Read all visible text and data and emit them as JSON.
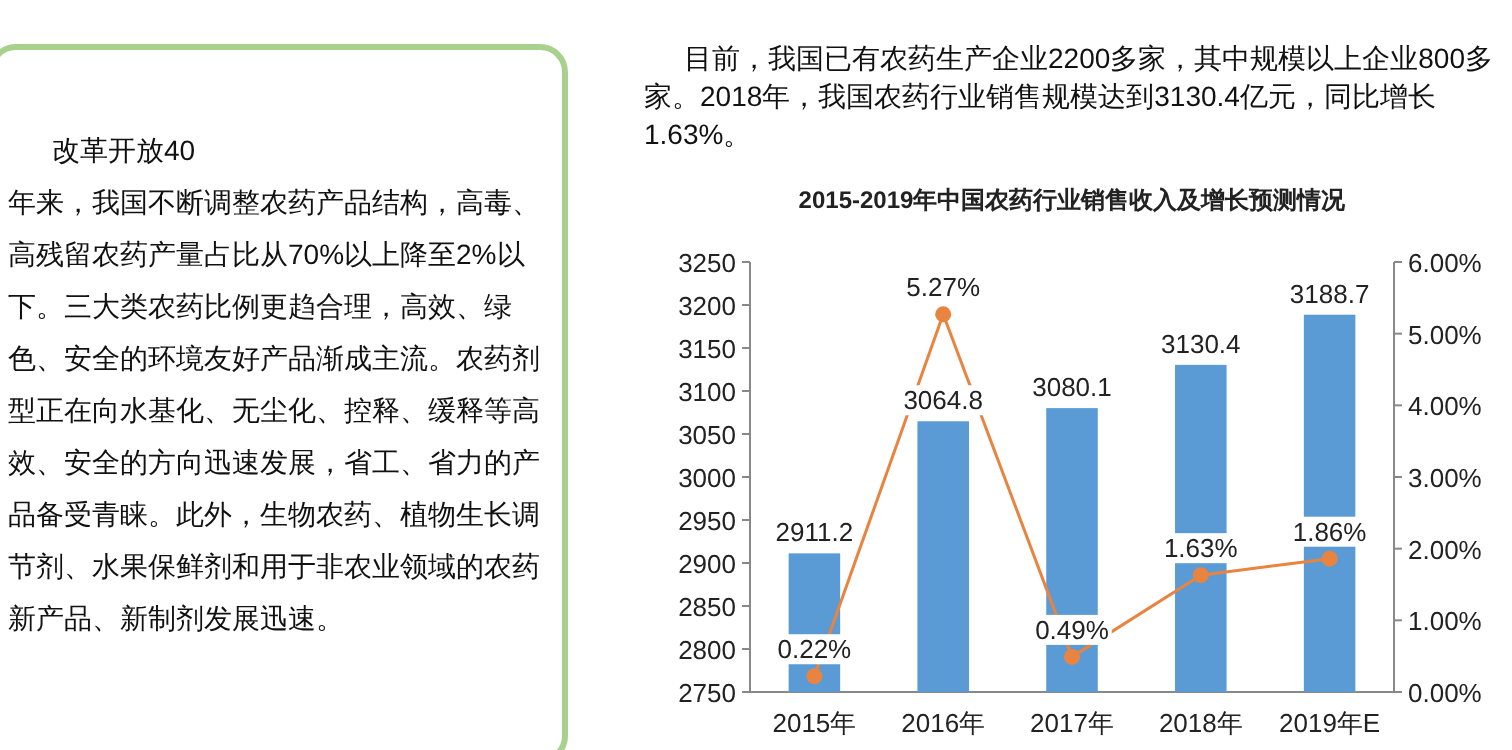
{
  "chart_data": {
    "type": "bar",
    "title": "2015-2019年中国农药行业销售收入及增长预测情况",
    "categories": [
      "2015年",
      "2016年",
      "2017年",
      "2018年",
      "2019年E"
    ],
    "series": [
      {
        "color": "#5b9bd5",
        "values": [
          2911.2,
          3064.8,
          3080.1,
          3130.4,
          3188.7
        ],
        "value_labels": [
          "2911.2",
          "3064.8",
          "3080.1",
          "3130.4",
          "3188.7"
        ]
      },
      {
        "type": "line",
        "axis": "y2",
        "color": "#e8843f",
        "marker": "circle",
        "values": [
          0.22,
          5.27,
          0.49,
          1.63,
          1.86
        ],
        "value_labels": [
          "0.22%",
          "5.27%",
          "0.49%",
          "1.63%",
          "1.86%"
        ]
      }
    ],
    "ylim": [
      2750,
      3250
    ],
    "yticks": [
      2750,
      2800,
      2850,
      2900,
      2950,
      3000,
      3050,
      3100,
      3150,
      3200,
      3250
    ],
    "y2lim": [
      0,
      6
    ],
    "y2ticks": [
      {
        "value": 0,
        "label": "0.00%"
      },
      {
        "value": 1,
        "label": "1.00%"
      },
      {
        "value": 2,
        "label": "2.00%"
      },
      {
        "value": 3,
        "label": "3.00%"
      },
      {
        "value": 4,
        "label": "4.00%"
      },
      {
        "value": 5,
        "label": "5.00%"
      },
      {
        "value": 6,
        "label": "6.00%"
      }
    ],
    "grid": false,
    "annotations": [
      "目前，我国已有农药生产企业2200多家，其中规模以上企业800多家。2018年，我国农药行业销售规模达到3130.4亿元，同比增长1.63%。",
      "改革开放40",
      "年来，我国不断调整农药产品结构，高毒、高残留农药产量占比从70%以上降至2%以下。三大类农药比例更趋合理，高效、绿色、安全的环境友好产品渐成主流。农药剂型正在向水基化、无尘化、控释、缓释等高效、安全的方向迅速发展，省工、省力的产品备受青睐。此外，生物农药、植物生长调节剂、水果保鲜剂和用于非农业领域的农药新产品、新制剂发展迅速。"
    ]
  }
}
